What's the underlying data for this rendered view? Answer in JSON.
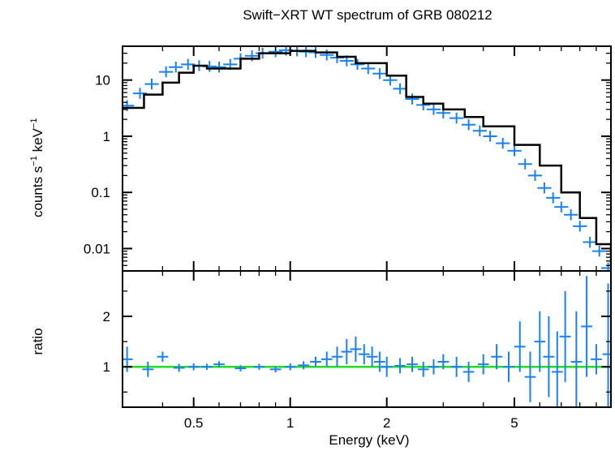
{
  "chart_data": [
    {
      "type": "line",
      "panel": "spectrum",
      "title": "Swift−XRT WT spectrum of GRB 080212",
      "xlabel": "Energy (keV)",
      "ylabel_main": "counts s",
      "ylabel_exp1": "−1",
      "ylabel_mid": " keV",
      "ylabel_exp2": "−1",
      "xscale": "log",
      "yscale": "log",
      "xlim": [
        0.3,
        10
      ],
      "ylim": [
        0.004,
        40
      ],
      "x_ticks": [
        {
          "value": 0.5,
          "label": "0.5"
        },
        {
          "value": 1,
          "label": "1"
        },
        {
          "value": 2,
          "label": "2"
        },
        {
          "value": 5,
          "label": "5"
        }
      ],
      "y_ticks": [
        {
          "value": 10,
          "label": "10"
        },
        {
          "value": 1,
          "label": "1"
        },
        {
          "value": 0.1,
          "label": "0.1"
        },
        {
          "value": 0.01,
          "label": "0.01"
        }
      ],
      "series": [
        {
          "name": "model",
          "color": "#000000",
          "x": [
            0.3,
            0.35,
            0.4,
            0.45,
            0.5,
            0.55,
            0.6,
            0.7,
            0.8,
            1.0,
            1.2,
            1.4,
            1.6,
            2.0,
            2.3,
            2.6,
            3.0,
            3.5,
            4.0,
            5.0,
            6.0,
            7.0,
            8.0,
            9.0,
            10.0
          ],
          "values": [
            3.2,
            5.5,
            9.0,
            13.5,
            18.0,
            16.0,
            16.0,
            24.0,
            30.0,
            33.0,
            31.0,
            26.0,
            20.0,
            12.0,
            5.0,
            3.8,
            3.0,
            2.2,
            1.5,
            0.7,
            0.3,
            0.1,
            0.035,
            0.012,
            0.005
          ]
        },
        {
          "name": "data",
          "color": "#1a82f0",
          "x": [
            0.31,
            0.34,
            0.37,
            0.41,
            0.44,
            0.48,
            0.52,
            0.56,
            0.6,
            0.65,
            0.7,
            0.76,
            0.82,
            0.9,
            0.97,
            1.05,
            1.12,
            1.2,
            1.3,
            1.4,
            1.5,
            1.62,
            1.75,
            1.9,
            2.05,
            2.2,
            2.4,
            2.6,
            2.8,
            3.0,
            3.3,
            3.6,
            3.9,
            4.2,
            4.6,
            5.0,
            5.4,
            5.8,
            6.2,
            6.6,
            7.0,
            7.5,
            8.0,
            8.6,
            9.2,
            9.8
          ],
          "values": [
            3.5,
            5.8,
            8.5,
            14.0,
            17.0,
            19.0,
            18.0,
            17.5,
            17.0,
            19.0,
            24.0,
            27.0,
            30.0,
            32.0,
            34.0,
            33.0,
            32.0,
            31.0,
            28.0,
            25.0,
            22.0,
            19.0,
            16.0,
            13.0,
            10.0,
            7.0,
            4.6,
            3.6,
            3.0,
            2.6,
            2.1,
            1.6,
            1.25,
            1.0,
            0.75,
            0.55,
            0.32,
            0.2,
            0.12,
            0.08,
            0.055,
            0.04,
            0.025,
            0.013,
            0.009,
            0.0045
          ]
        }
      ]
    },
    {
      "type": "scatter",
      "panel": "ratio",
      "xlabel": "Energy (keV)",
      "ylabel": "ratio",
      "xscale": "log",
      "yscale": "linear",
      "xlim": [
        0.3,
        10
      ],
      "ylim": [
        0.2,
        2.9
      ],
      "y_ticks": [
        {
          "value": 2,
          "label": "2"
        },
        {
          "value": 1,
          "label": "1"
        }
      ],
      "reference_line": {
        "value": 1,
        "color": "#22dd22"
      },
      "series": [
        {
          "name": "ratio",
          "color": "#1a82f0",
          "x": [
            0.31,
            0.36,
            0.4,
            0.45,
            0.5,
            0.55,
            0.6,
            0.7,
            0.8,
            0.9,
            1.0,
            1.1,
            1.2,
            1.3,
            1.4,
            1.5,
            1.6,
            1.7,
            1.8,
            1.9,
            2.0,
            2.2,
            2.4,
            2.6,
            2.8,
            3.0,
            3.3,
            3.6,
            4.0,
            4.4,
            4.8,
            5.2,
            5.6,
            6.0,
            6.4,
            6.8,
            7.2,
            7.8,
            8.4,
            9.0,
            9.8
          ],
          "values": [
            1.15,
            0.95,
            1.2,
            0.98,
            1.0,
            1.0,
            1.05,
            0.97,
            1.0,
            0.95,
            1.0,
            1.03,
            1.1,
            1.15,
            1.2,
            1.3,
            1.35,
            1.25,
            1.2,
            1.1,
            1.0,
            1.02,
            1.05,
            0.95,
            1.0,
            1.1,
            1.0,
            0.9,
            1.05,
            1.2,
            1.0,
            1.4,
            0.8,
            1.5,
            1.2,
            0.9,
            1.6,
            1.1,
            1.8,
            1.15,
            1.25
          ],
          "errors": [
            0.25,
            0.15,
            0.1,
            0.08,
            0.07,
            0.06,
            0.06,
            0.06,
            0.06,
            0.06,
            0.07,
            0.08,
            0.1,
            0.15,
            0.2,
            0.25,
            0.25,
            0.2,
            0.2,
            0.2,
            0.2,
            0.15,
            0.15,
            0.15,
            0.15,
            0.15,
            0.2,
            0.2,
            0.2,
            0.25,
            0.3,
            0.5,
            0.5,
            0.6,
            0.8,
            0.8,
            0.9,
            1.0,
            1.0,
            0.3,
            1.4
          ]
        }
      ]
    }
  ]
}
